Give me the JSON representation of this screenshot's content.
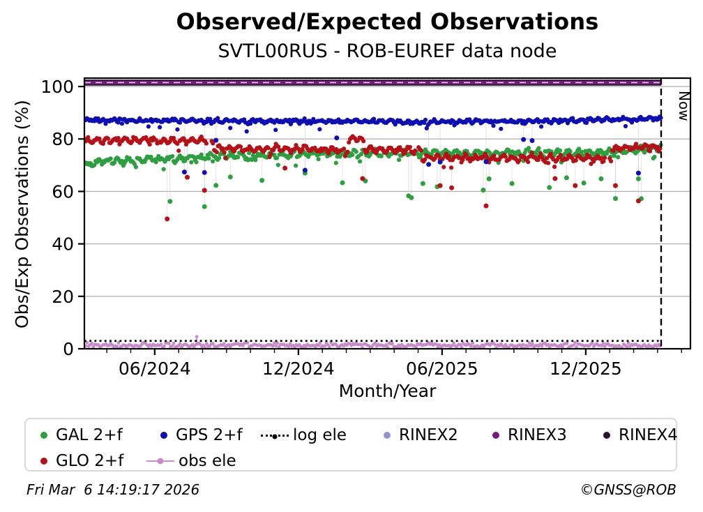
{
  "chart_data": {
    "type": "scatter",
    "title": "Observed/Expected Observations",
    "subtitle": "SVTL00RUS - ROB-EUREF data node",
    "xlabel": "Month/Year",
    "ylabel": "Obs/Exp Observations (%)",
    "xlim": [
      2024.172,
      2026.281
    ],
    "ylim": [
      0,
      103.2
    ],
    "grid": true,
    "grid_color": "#b3b3b3",
    "frame_color": "#000000",
    "x_ticks": [
      {
        "value": 2024.4167,
        "label": "06/2024"
      },
      {
        "value": 2024.9167,
        "label": "12/2024"
      },
      {
        "value": 2025.4167,
        "label": "06/2025"
      },
      {
        "value": 2025.9167,
        "label": "12/2025"
      }
    ],
    "x_minor_step_months": 1,
    "y_ticks": [
      {
        "value": 0,
        "label": "0"
      },
      {
        "value": 20,
        "label": "20"
      },
      {
        "value": 40,
        "label": "40"
      },
      {
        "value": 60,
        "label": "60"
      },
      {
        "value": 80,
        "label": "80"
      },
      {
        "value": 100,
        "label": "100"
      }
    ],
    "now_marker": {
      "x": 2026.179,
      "label": "Now",
      "line_style": "dashed",
      "color": "#000000"
    },
    "series": [
      {
        "name": "GAL 2+f",
        "type": "scatter-band",
        "color": "#2f9e41",
        "marker_r": 3.1,
        "noise": 0.85,
        "wobble_amp": 0.8,
        "wobble_period_days": 13,
        "low_tail_p": 0.055,
        "low_tail_max": 3.2,
        "levels": [
          [
            [
              2024.176,
              70.6
            ],
            [
              2024.3,
              71.6
            ],
            [
              2024.5,
              72.6
            ],
            [
              2024.65,
              73.5
            ],
            [
              2024.95,
              74.1
            ],
            [
              2025.15,
              74.6
            ],
            [
              2025.6,
              74.6
            ],
            [
              2025.98,
              74.9
            ],
            [
              2026.05,
              75.4
            ],
            [
              2026.179,
              76.4
            ]
          ]
        ],
        "outliers": [
          [
            2024.47,
            56.2
          ],
          [
            2024.59,
            54.2
          ],
          [
            2024.63,
            62.3
          ],
          [
            2024.68,
            65.5
          ],
          [
            2024.79,
            64.2
          ],
          [
            2024.94,
            67.0
          ],
          [
            2025.07,
            63.3
          ],
          [
            2025.15,
            64.0
          ],
          [
            2025.3,
            58.3
          ],
          [
            2025.31,
            57.6
          ],
          [
            2025.35,
            63.0
          ],
          [
            2025.4,
            61.8
          ],
          [
            2025.56,
            60.5
          ],
          [
            2025.58,
            64.8
          ],
          [
            2025.66,
            63.0
          ],
          [
            2025.79,
            61.5
          ],
          [
            2025.85,
            65.2
          ],
          [
            2025.91,
            63.2
          ],
          [
            2025.97,
            64.8
          ],
          [
            2026.02,
            57.3
          ],
          [
            2026.1,
            64.8
          ],
          [
            2026.11,
            57.2
          ]
        ]
      },
      {
        "name": "GLO 2+f",
        "type": "scatter-band",
        "color": "#b41219",
        "marker_r": 3.1,
        "noise": 0.75,
        "wobble_amp": 0.9,
        "wobble_period_days": 12,
        "low_tail_p": 0.03,
        "low_tail_max": 3.0,
        "levels": [
          [
            [
              2024.176,
              79.6
            ],
            [
              2024.6,
              79.2
            ]
          ],
          [
            [
              2024.615,
              76.3
            ],
            [
              2025.07,
              75.9
            ]
          ],
          [
            [
              2025.075,
              80.2
            ],
            [
              2025.125,
              79.5
            ]
          ],
          [
            [
              2025.13,
              76.0
            ],
            [
              2025.325,
              75.8
            ]
          ],
          [
            [
              2025.335,
              72.9
            ],
            [
              2025.985,
              72.6
            ]
          ],
          [
            [
              2026.0,
              76.4
            ],
            [
              2026.179,
              76.9
            ]
          ]
        ],
        "outliers": [
          [
            2024.46,
            49.5
          ],
          [
            2024.53,
            65.4
          ],
          [
            2024.59,
            60.4
          ],
          [
            2024.87,
            68.9
          ],
          [
            2025.14,
            64.9
          ],
          [
            2025.41,
            62.2
          ],
          [
            2025.45,
            61.4
          ],
          [
            2025.57,
            54.5
          ],
          [
            2025.81,
            64.9
          ],
          [
            2025.88,
            62.2
          ],
          [
            2026.02,
            62.2
          ],
          [
            2026.1,
            56.4
          ]
        ]
      },
      {
        "name": "GPS 2+f",
        "type": "scatter-band",
        "color": "#0f0fb0",
        "marker_r": 3.1,
        "noise": 0.55,
        "wobble_amp": 0.4,
        "wobble_period_days": 11,
        "low_tail_p": 0.06,
        "low_tail_max": 3.0,
        "levels": [
          [
            [
              2024.176,
              87.2
            ],
            [
              2024.75,
              86.8
            ],
            [
              2025.3,
              86.6
            ],
            [
              2025.75,
              86.8
            ],
            [
              2026.0,
              87.3
            ],
            [
              2026.179,
              87.9
            ]
          ]
        ],
        "outliers": [
          [
            2024.52,
            67.4
          ],
          [
            2024.59,
            67.2
          ],
          [
            2024.63,
            79.5
          ],
          [
            2024.94,
            68.1
          ],
          [
            2025.05,
            80.4
          ],
          [
            2025.37,
            70.3
          ],
          [
            2025.41,
            71.2
          ],
          [
            2025.57,
            71.3
          ],
          [
            2025.7,
            79.8
          ],
          [
            2025.73,
            79.4
          ],
          [
            2026.1,
            67.0
          ]
        ]
      },
      {
        "name": "obs ele",
        "type": "scatter-line",
        "color": "#c98ccb",
        "marker_r": 2.4,
        "noise": 0.8,
        "clamp": [
          0.15,
          2.9
        ],
        "step_days": 2,
        "levels": [
          [
            [
              2024.176,
              1.35
            ],
            [
              2026.179,
              1.3
            ]
          ]
        ],
        "outliers": [
          [
            2024.563,
            4.6
          ]
        ]
      },
      {
        "name": "log ele",
        "type": "dotted-hline",
        "color": "#000000",
        "y": 3.0
      },
      {
        "name": "RINEX4",
        "type": "hline",
        "color": "#2b0f30",
        "y": 101.5,
        "width": 8.6
      },
      {
        "name": "RINEX3",
        "type": "hline",
        "color": "#701d76",
        "y": 101.5,
        "width": 5.2
      },
      {
        "name": "RINEX2",
        "type": "hline-dashed",
        "color": "#9494cc",
        "dash_color": "#d9c2e2",
        "y": 101.5,
        "width": 1.7
      }
    ],
    "legend": {
      "rows": [
        [
          {
            "label": "GAL 2+f",
            "marker": "dot",
            "color": "#2f9e41"
          },
          {
            "label": "GPS 2+f",
            "marker": "dot",
            "color": "#0f0fb0"
          },
          {
            "label": "log ele",
            "marker": "dotted-line",
            "color": "#000000"
          },
          {
            "label": "RINEX2",
            "marker": "dot",
            "color": "#9494cc"
          },
          {
            "label": "RINEX3",
            "marker": "dot",
            "color": "#701d76"
          },
          {
            "label": "RINEX4",
            "marker": "dot",
            "color": "#2b0f30"
          }
        ],
        [
          {
            "label": "GLO 2+f",
            "marker": "dot",
            "color": "#b41219"
          },
          {
            "label": "obs ele",
            "marker": "line-dot",
            "color": "#c98ccb"
          }
        ]
      ]
    }
  },
  "footer": {
    "left": "Fri Mar  6 14:19:17 2026",
    "right": "©GNSS@ROB"
  }
}
